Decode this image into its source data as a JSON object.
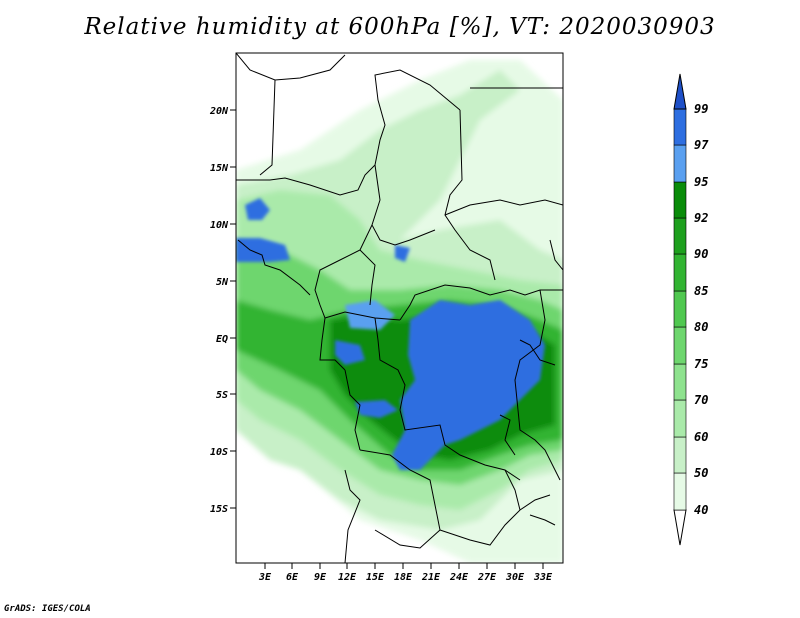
{
  "title": "Relative humidity at 600hPa [%], VT: 2020030903",
  "credit": "GrADS: IGES/COLA",
  "map": {
    "lat_ticks": [
      "20N",
      "15N",
      "10N",
      "5N",
      "EQ",
      "5S",
      "10S",
      "15S"
    ],
    "lon_ticks": [
      "3E",
      "6E",
      "9E",
      "12E",
      "15E",
      "18E",
      "21E",
      "24E",
      "27E",
      "30E",
      "33E"
    ]
  },
  "colorbar": {
    "levels": [
      "40",
      "50",
      "60",
      "70",
      "75",
      "80",
      "85",
      "90",
      "92",
      "95",
      "97",
      "99"
    ],
    "colors": [
      "#ffffff",
      "#e6fae6",
      "#c8f0c8",
      "#aaeaaa",
      "#8ee28e",
      "#6ed66e",
      "#50c850",
      "#32b432",
      "#1ea01e",
      "#0a8c0a",
      "#5aa0f0",
      "#2e6ee0",
      "#1e50c8"
    ]
  }
}
